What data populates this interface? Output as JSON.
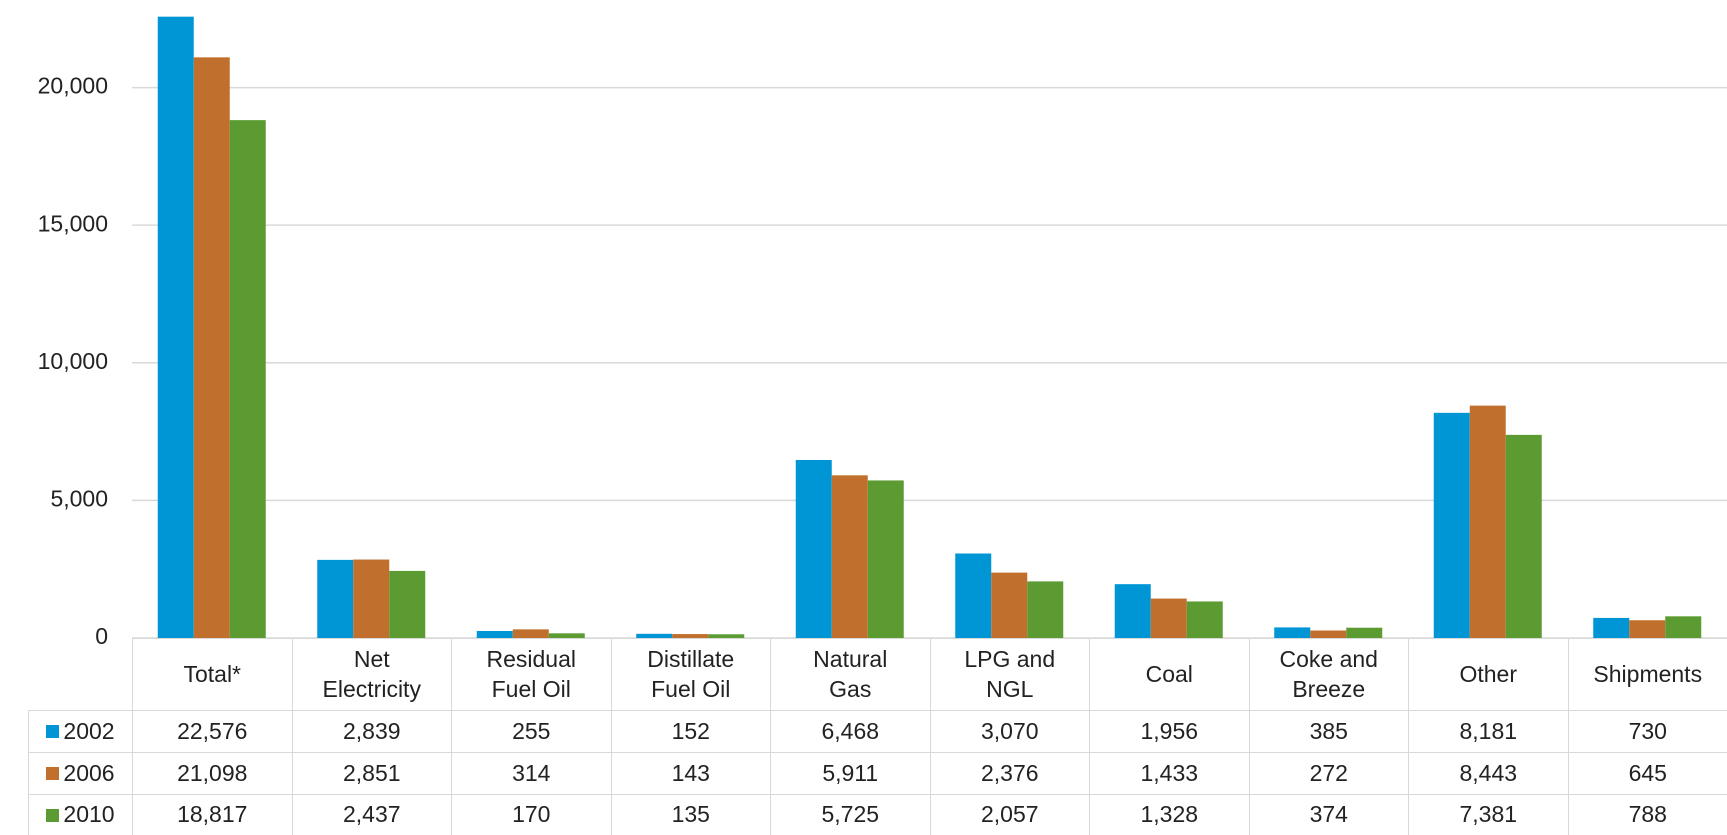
{
  "chart_data": {
    "type": "bar",
    "categories": [
      "Total*",
      "Net Electricity",
      "Residual Fuel Oil",
      "Distillate Fuel Oil",
      "Natural Gas",
      "LPG and NGL",
      "Coal",
      "Coke and Breeze",
      "Other",
      "Shipments"
    ],
    "series": [
      {
        "name": "2002",
        "color": "#0096d6",
        "values": [
          22576,
          2839,
          255,
          152,
          6468,
          3070,
          1956,
          385,
          8181,
          730
        ],
        "value_labels": [
          "22,576",
          "2,839",
          "255",
          "152",
          "6,468",
          "3,070",
          "1,956",
          "385",
          "8,181",
          "730"
        ]
      },
      {
        "name": "2006",
        "color": "#c0702c",
        "values": [
          21098,
          2851,
          314,
          143,
          5911,
          2376,
          1433,
          272,
          8443,
          645
        ],
        "value_labels": [
          "21,098",
          "2,851",
          "314",
          "143",
          "5,911",
          "2,376",
          "1,433",
          "272",
          "8,443",
          "645"
        ]
      },
      {
        "name": "2010",
        "color": "#5c9b31",
        "values": [
          18817,
          2437,
          170,
          135,
          5725,
          2057,
          1328,
          374,
          7381,
          788
        ],
        "value_labels": [
          "18,817",
          "2,437",
          "170",
          "135",
          "5,725",
          "2,057",
          "1,328",
          "374",
          "7,381",
          "788"
        ]
      }
    ],
    "ylim": [
      0,
      23000
    ],
    "yticks": [
      0,
      {
        "value": 5000,
        "label": "5,000"
      },
      {
        "value": 10000,
        "label": "10,000"
      },
      {
        "value": 15000,
        "label": "15,000"
      },
      {
        "value": 20000,
        "label": "20,000"
      }
    ],
    "grid": true
  }
}
